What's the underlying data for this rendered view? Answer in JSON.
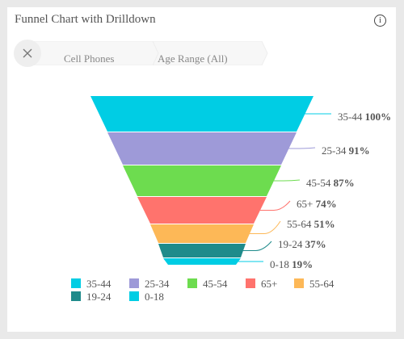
{
  "header": {
    "title": "Funnel Chart with Drilldown",
    "info_icon": "info-icon",
    "info_glyph": "i"
  },
  "breadcrumb": {
    "close_icon": "close-icon",
    "items": [
      {
        "label": "Cell Phones"
      },
      {
        "label": "Age Range (All)"
      }
    ]
  },
  "chart_data": {
    "type": "funnel",
    "title": "Funnel Chart with Drilldown",
    "legend_position": "bottom",
    "stages": [
      {
        "name": "35-44",
        "percent": 100,
        "label": "100%",
        "color": "#00cde4"
      },
      {
        "name": "25-34",
        "percent": 91,
        "label": "91%",
        "color": "#9e9ad8"
      },
      {
        "name": "45-54",
        "percent": 87,
        "label": "87%",
        "color": "#6ddc4f"
      },
      {
        "name": "65+",
        "percent": 74,
        "label": "74%",
        "color": "#ff736d"
      },
      {
        "name": "55-64",
        "percent": 51,
        "label": "51%",
        "color": "#fdb857"
      },
      {
        "name": "19-24",
        "percent": 37,
        "label": "37%",
        "color": "#1f8b8b"
      },
      {
        "name": "0-18",
        "percent": 19,
        "label": "19%",
        "color": "#00cde4"
      }
    ]
  }
}
